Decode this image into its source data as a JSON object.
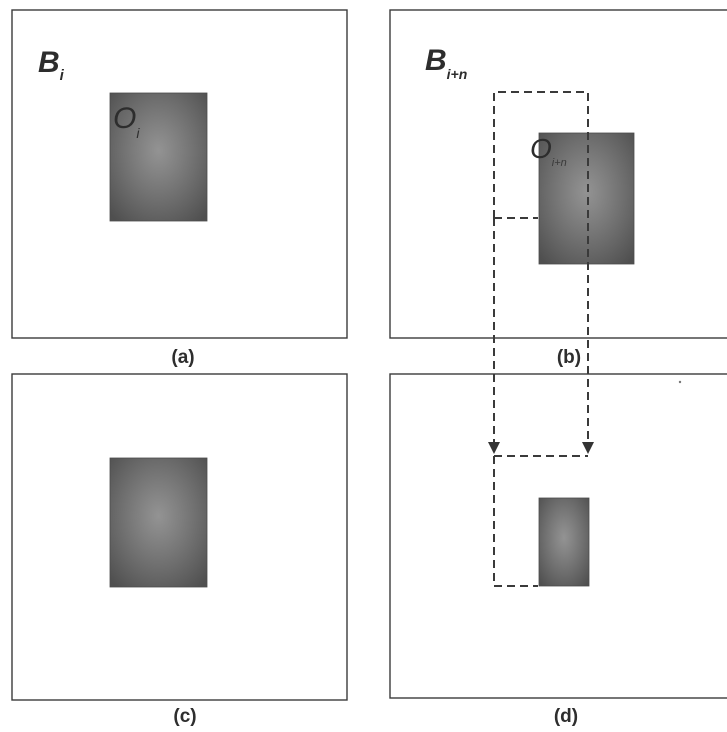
{
  "panels": {
    "a": {
      "label": "(a)",
      "block_symbol": "B",
      "block_subscript": "i",
      "object_symbol": "O",
      "object_subscript": "i"
    },
    "b": {
      "label": "(b)",
      "block_symbol": "B",
      "block_subscript": "i+n",
      "object_symbol": "O",
      "object_subscript": "i+n"
    },
    "c": {
      "label": "(c)"
    },
    "d": {
      "label": "(d)"
    }
  },
  "colors": {
    "frame": "#3b3b3b",
    "object_fill": "#6a6a6a",
    "object_edge": "#4c4c4c",
    "dash": "#3a3a3a"
  }
}
